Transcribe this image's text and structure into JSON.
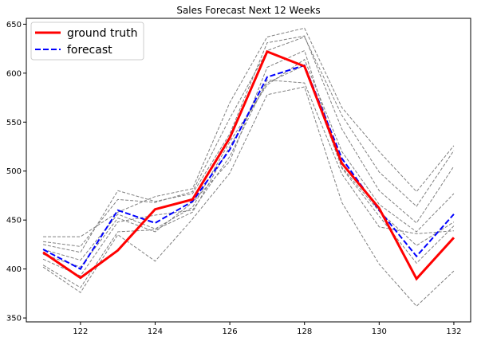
{
  "chart_data": {
    "type": "line",
    "title": "Sales Forecast Next 12 Weeks",
    "xlabel": "",
    "ylabel": "",
    "xlim": [
      120.55,
      132.45
    ],
    "ylim": [
      346,
      656
    ],
    "x_ticks": [
      122,
      124,
      126,
      128,
      130,
      132
    ],
    "y_ticks": [
      350,
      400,
      450,
      500,
      550,
      600,
      650
    ],
    "x": [
      121,
      122,
      123,
      124,
      125,
      126,
      127,
      128,
      129,
      130,
      131,
      132
    ],
    "grid": false,
    "legend": {
      "placement": "top-left",
      "entries": [
        {
          "label": "ground truth",
          "color": "#ff0000",
          "style": "solid"
        },
        {
          "label": "forecast",
          "color": "#0000ff",
          "style": "dashed"
        }
      ]
    },
    "series": [
      {
        "name": "ground truth",
        "color": "#ff0000",
        "style": "solid",
        "values": [
          417,
          391,
          419,
          461,
          471,
          534,
          622,
          607,
          508,
          462,
          390,
          432
        ]
      },
      {
        "name": "forecast",
        "color": "#0000ff",
        "style": "dashed",
        "values": [
          420,
          400,
          460,
          447,
          469,
          522,
          596,
          608,
          513,
          460,
          413,
          456
        ]
      }
    ],
    "samples": {
      "color": "#808080",
      "style": "dashed",
      "series": [
        [
          433,
          433,
          458,
          474,
          482,
          570,
          637,
          646,
          565,
          520,
          479,
          526
        ],
        [
          428,
          423,
          471,
          468,
          479,
          554,
          623,
          637,
          557,
          499,
          464,
          521
        ],
        [
          425,
          417,
          480,
          469,
          477,
          538,
          631,
          638,
          543,
          480,
          447,
          505
        ],
        [
          420,
          409,
          456,
          441,
          463,
          530,
          588,
          614,
          520,
          466,
          438,
          477
        ],
        [
          415,
          402,
          452,
          438,
          468,
          510,
          606,
          623,
          504,
          459,
          424,
          448
        ],
        [
          410,
          393,
          448,
          455,
          460,
          515,
          593,
          590,
          497,
          443,
          436,
          439
        ],
        [
          404,
          381,
          438,
          440,
          458,
          525,
          590,
          608,
          503,
          454,
          406,
          444
        ],
        [
          402,
          376,
          435,
          408,
          451,
          498,
          578,
          586,
          468,
          405,
          362,
          398
        ]
      ]
    }
  }
}
